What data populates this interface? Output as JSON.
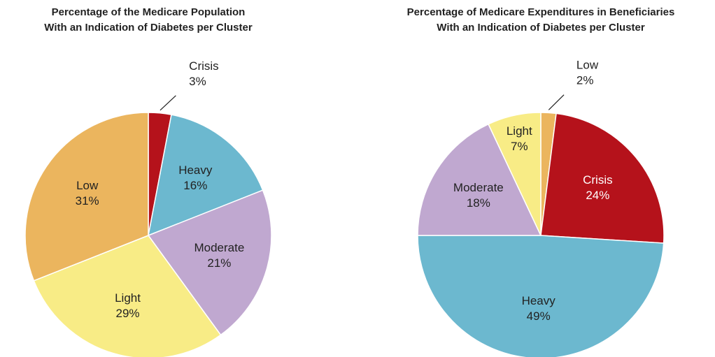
{
  "chart_data": [
    {
      "type": "pie",
      "title": [
        "Percentage of the Medicare Population",
        "With an Indication of Diabetes per Cluster"
      ],
      "categories": [
        "Crisis",
        "Heavy",
        "Moderate",
        "Light",
        "Low"
      ],
      "values": [
        3,
        16,
        21,
        29,
        31
      ],
      "value_labels": [
        "3%",
        "16%",
        "21%",
        "29%",
        "31%"
      ],
      "colors": [
        "#b5121b",
        "#6cb8cf",
        "#c0a8d0",
        "#f8ec86",
        "#ebb55e"
      ]
    },
    {
      "type": "pie",
      "title": [
        "Percentage of Medicare Expenditures in Beneficiaries",
        "With an Indication of Diabetes per Cluster"
      ],
      "categories": [
        "Low",
        "Crisis",
        "Heavy",
        "Moderate",
        "Light"
      ],
      "values": [
        2,
        24,
        49,
        18,
        7
      ],
      "value_labels": [
        "2%",
        "24%",
        "49%",
        "18%",
        "7%"
      ],
      "colors": [
        "#ebb55e",
        "#b5121b",
        "#6cb8cf",
        "#c0a8d0",
        "#f8ec86"
      ]
    }
  ]
}
